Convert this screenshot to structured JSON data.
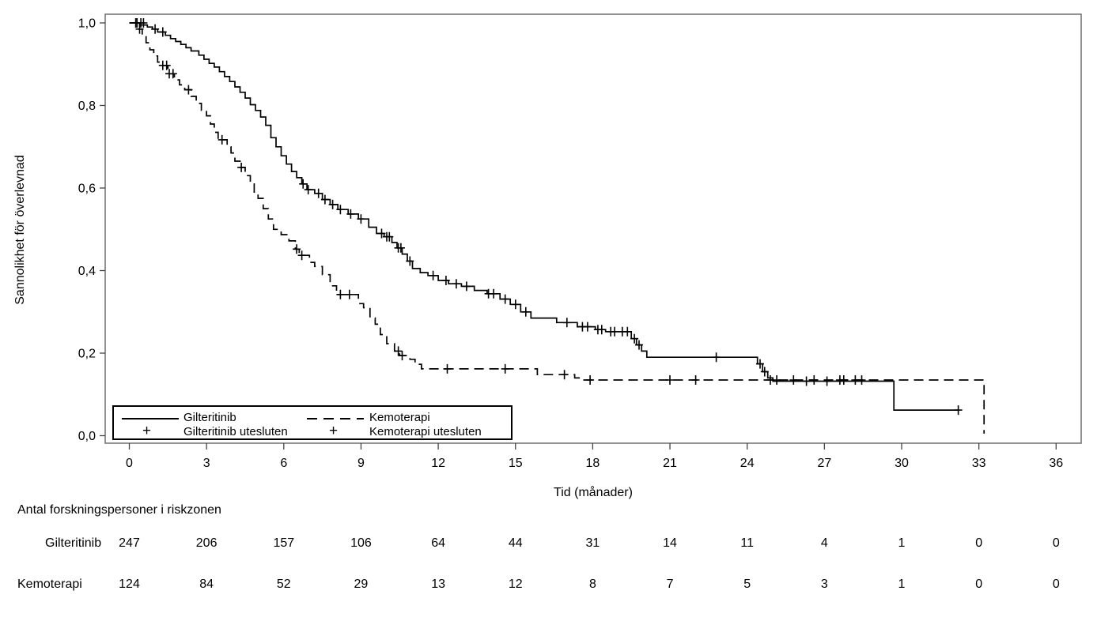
{
  "figure": {
    "y_axis_label": "Sannolikhet för överlevnad",
    "x_axis_label": "Tid (månader)"
  },
  "legend": {
    "plus_char": "+",
    "items": [
      {
        "label": "Gilteritinib",
        "marker": "solid-line"
      },
      {
        "label": "Gilteritinib utesluten",
        "marker": "plus"
      },
      {
        "label": "Kemoterapi",
        "marker": "dashed-line"
      },
      {
        "label": "Kemoterapi utesluten",
        "marker": "plus"
      }
    ]
  },
  "chart_data": {
    "type": "line",
    "subtype": "kaplan-meier-step",
    "title": "",
    "xlabel": "Tid (månader)",
    "ylabel": "Sannolikhet för överlevnad",
    "xlim": [
      0,
      36
    ],
    "ylim": [
      0.0,
      1.0
    ],
    "grid": false,
    "legend_position": "inside-bottom-left",
    "x_ticks": [
      0,
      3,
      6,
      9,
      12,
      15,
      18,
      21,
      24,
      27,
      30,
      33,
      36
    ],
    "y_ticks": {
      "values": [
        0.0,
        0.2,
        0.4,
        0.6,
        0.8,
        1.0
      ],
      "labels": [
        "0,0",
        "0,2",
        "0,4",
        "0,6",
        "0,8",
        "1,0"
      ]
    },
    "series": [
      {
        "name": "Gilteritinib",
        "line_style": "solid",
        "color": "#000000",
        "points": [
          [
            0,
            1.0
          ],
          [
            0.4,
            0.995
          ],
          [
            0.7,
            0.99
          ],
          [
            0.9,
            0.985
          ],
          [
            1.1,
            0.978
          ],
          [
            1.4,
            0.97
          ],
          [
            1.6,
            0.962
          ],
          [
            1.8,
            0.955
          ],
          [
            2.0,
            0.948
          ],
          [
            2.2,
            0.94
          ],
          [
            2.4,
            0.932
          ],
          [
            2.7,
            0.922
          ],
          [
            2.9,
            0.912
          ],
          [
            3.1,
            0.902
          ],
          [
            3.3,
            0.893
          ],
          [
            3.5,
            0.882
          ],
          [
            3.7,
            0.87
          ],
          [
            3.9,
            0.858
          ],
          [
            4.1,
            0.845
          ],
          [
            4.3,
            0.832
          ],
          [
            4.5,
            0.818
          ],
          [
            4.7,
            0.802
          ],
          [
            4.9,
            0.788
          ],
          [
            5.1,
            0.772
          ],
          [
            5.3,
            0.752
          ],
          [
            5.5,
            0.722
          ],
          [
            5.7,
            0.7
          ],
          [
            5.9,
            0.678
          ],
          [
            6.1,
            0.658
          ],
          [
            6.3,
            0.64
          ],
          [
            6.5,
            0.625
          ],
          [
            6.7,
            0.61
          ],
          [
            6.9,
            0.596
          ],
          [
            7.2,
            0.587
          ],
          [
            7.5,
            0.572
          ],
          [
            7.8,
            0.56
          ],
          [
            8.1,
            0.548
          ],
          [
            8.5,
            0.537
          ],
          [
            8.9,
            0.525
          ],
          [
            9.3,
            0.505
          ],
          [
            9.6,
            0.49
          ],
          [
            9.9,
            0.482
          ],
          [
            10.2,
            0.468
          ],
          [
            10.4,
            0.455
          ],
          [
            10.6,
            0.44
          ],
          [
            10.8,
            0.423
          ],
          [
            11.0,
            0.405
          ],
          [
            11.3,
            0.395
          ],
          [
            11.6,
            0.388
          ],
          [
            12.0,
            0.376
          ],
          [
            12.4,
            0.368
          ],
          [
            12.9,
            0.362
          ],
          [
            13.4,
            0.352
          ],
          [
            13.9,
            0.344
          ],
          [
            14.4,
            0.331
          ],
          [
            14.8,
            0.318
          ],
          [
            15.2,
            0.3
          ],
          [
            15.6,
            0.285
          ],
          [
            16.6,
            0.274
          ],
          [
            17.4,
            0.264
          ],
          [
            18.1,
            0.257
          ],
          [
            18.5,
            0.252
          ],
          [
            19.5,
            0.235
          ],
          [
            19.7,
            0.22
          ],
          [
            19.9,
            0.205
          ],
          [
            20.1,
            0.19
          ],
          [
            24.4,
            0.174
          ],
          [
            24.6,
            0.155
          ],
          [
            24.8,
            0.14
          ],
          [
            25.0,
            0.132
          ],
          [
            29.7,
            0.062
          ],
          [
            32.2,
            0.062
          ]
        ],
        "censor_marks": [
          [
            0.3,
            1.0
          ],
          [
            0.45,
            1.0
          ],
          [
            0.55,
            1.0
          ],
          [
            1.0,
            0.985
          ],
          [
            1.3,
            0.978
          ],
          [
            6.75,
            0.61
          ],
          [
            6.95,
            0.596
          ],
          [
            7.35,
            0.587
          ],
          [
            7.6,
            0.572
          ],
          [
            7.9,
            0.56
          ],
          [
            8.2,
            0.548
          ],
          [
            8.6,
            0.537
          ],
          [
            9.0,
            0.525
          ],
          [
            9.8,
            0.49
          ],
          [
            10.0,
            0.482
          ],
          [
            10.1,
            0.482
          ],
          [
            10.45,
            0.455
          ],
          [
            10.55,
            0.455
          ],
          [
            10.9,
            0.423
          ],
          [
            11.8,
            0.388
          ],
          [
            12.3,
            0.376
          ],
          [
            12.7,
            0.368
          ],
          [
            13.1,
            0.362
          ],
          [
            13.95,
            0.344
          ],
          [
            14.15,
            0.344
          ],
          [
            14.6,
            0.331
          ],
          [
            15.0,
            0.318
          ],
          [
            15.4,
            0.3
          ],
          [
            17.0,
            0.274
          ],
          [
            17.6,
            0.264
          ],
          [
            17.8,
            0.264
          ],
          [
            18.2,
            0.257
          ],
          [
            18.35,
            0.257
          ],
          [
            18.7,
            0.252
          ],
          [
            18.85,
            0.252
          ],
          [
            19.15,
            0.252
          ],
          [
            19.35,
            0.252
          ],
          [
            19.62,
            0.235
          ],
          [
            19.8,
            0.22
          ],
          [
            22.8,
            0.19
          ],
          [
            24.5,
            0.174
          ],
          [
            24.68,
            0.155
          ],
          [
            26.3,
            0.132
          ],
          [
            27.1,
            0.132
          ],
          [
            32.2,
            0.062
          ]
        ]
      },
      {
        "name": "Kemoterapi",
        "line_style": "dashed",
        "color": "#000000",
        "points": [
          [
            0,
            1.0
          ],
          [
            0.35,
            0.985
          ],
          [
            0.5,
            0.968
          ],
          [
            0.65,
            0.952
          ],
          [
            0.8,
            0.935
          ],
          [
            0.95,
            0.92
          ],
          [
            1.1,
            0.905
          ],
          [
            1.25,
            0.897
          ],
          [
            1.5,
            0.877
          ],
          [
            1.75,
            0.862
          ],
          [
            1.95,
            0.85
          ],
          [
            2.15,
            0.838
          ],
          [
            2.4,
            0.822
          ],
          [
            2.6,
            0.805
          ],
          [
            2.8,
            0.788
          ],
          [
            3.0,
            0.775
          ],
          [
            3.15,
            0.755
          ],
          [
            3.3,
            0.735
          ],
          [
            3.45,
            0.717
          ],
          [
            3.8,
            0.7
          ],
          [
            3.95,
            0.685
          ],
          [
            4.1,
            0.665
          ],
          [
            4.3,
            0.65
          ],
          [
            4.5,
            0.63
          ],
          [
            4.7,
            0.61
          ],
          [
            4.85,
            0.59
          ],
          [
            5.0,
            0.575
          ],
          [
            5.2,
            0.55
          ],
          [
            5.4,
            0.525
          ],
          [
            5.6,
            0.5
          ],
          [
            5.9,
            0.487
          ],
          [
            6.2,
            0.472
          ],
          [
            6.45,
            0.452
          ],
          [
            6.6,
            0.437
          ],
          [
            7.0,
            0.42
          ],
          [
            7.2,
            0.41
          ],
          [
            7.5,
            0.39
          ],
          [
            7.8,
            0.363
          ],
          [
            8.05,
            0.342
          ],
          [
            8.9,
            0.32
          ],
          [
            9.1,
            0.31
          ],
          [
            9.35,
            0.285
          ],
          [
            9.55,
            0.27
          ],
          [
            9.75,
            0.245
          ],
          [
            10.0,
            0.223
          ],
          [
            10.3,
            0.205
          ],
          [
            10.5,
            0.194
          ],
          [
            10.9,
            0.185
          ],
          [
            11.1,
            0.173
          ],
          [
            11.35,
            0.162
          ],
          [
            15.85,
            0.148
          ],
          [
            17.3,
            0.14
          ],
          [
            17.6,
            0.135
          ],
          [
            33.2,
            0.005
          ]
        ],
        "censor_marks": [
          [
            0.25,
            1.0
          ],
          [
            0.4,
            0.985
          ],
          [
            1.3,
            0.897
          ],
          [
            1.45,
            0.897
          ],
          [
            1.55,
            0.877
          ],
          [
            1.7,
            0.877
          ],
          [
            2.3,
            0.838
          ],
          [
            3.6,
            0.717
          ],
          [
            4.35,
            0.65
          ],
          [
            6.5,
            0.452
          ],
          [
            6.7,
            0.437
          ],
          [
            8.2,
            0.342
          ],
          [
            8.55,
            0.342
          ],
          [
            10.45,
            0.205
          ],
          [
            10.6,
            0.194
          ],
          [
            12.35,
            0.162
          ],
          [
            14.6,
            0.162
          ],
          [
            16.9,
            0.148
          ],
          [
            17.9,
            0.135
          ],
          [
            21.0,
            0.135
          ],
          [
            22.0,
            0.135
          ],
          [
            24.9,
            0.135
          ],
          [
            25.15,
            0.135
          ],
          [
            25.8,
            0.135
          ],
          [
            26.6,
            0.135
          ],
          [
            27.6,
            0.135
          ],
          [
            27.75,
            0.135
          ],
          [
            28.2,
            0.135
          ],
          [
            28.45,
            0.135
          ]
        ]
      }
    ],
    "risk_table": {
      "title": "Antal forskningspersoner i riskzonen",
      "time_points": [
        0,
        3,
        6,
        9,
        12,
        15,
        18,
        21,
        24,
        27,
        30,
        33,
        36
      ],
      "rows": [
        {
          "label": "Gilteritinib",
          "counts": [
            247,
            206,
            157,
            106,
            64,
            44,
            31,
            14,
            11,
            4,
            1,
            0,
            0
          ]
        },
        {
          "label": "Kemoterapi",
          "counts": [
            124,
            84,
            52,
            29,
            13,
            12,
            8,
            7,
            5,
            3,
            1,
            0,
            0
          ]
        }
      ]
    }
  }
}
